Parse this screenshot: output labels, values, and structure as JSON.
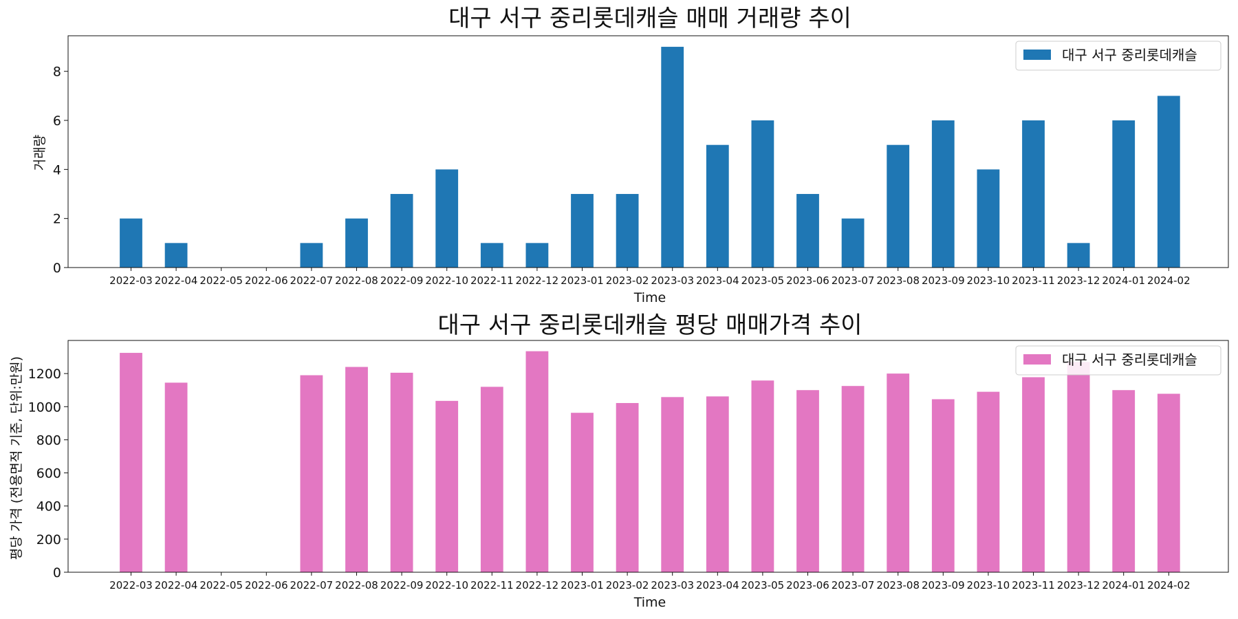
{
  "chart_data": [
    {
      "type": "bar",
      "title": "대구 서구 중리롯데캐슬 매매 거래량 추이",
      "xlabel": "Time",
      "ylabel": "거래량",
      "ylim": [
        0,
        9.45
      ],
      "yticks": [
        0,
        2,
        4,
        6,
        8
      ],
      "grid": false,
      "legend_position": "top-right",
      "color": "#1f77b4",
      "categories": [
        "2022-03",
        "2022-04",
        "2022-05",
        "2022-06",
        "2022-07",
        "2022-08",
        "2022-09",
        "2022-10",
        "2022-11",
        "2022-12",
        "2023-01",
        "2023-02",
        "2023-03",
        "2023-04",
        "2023-05",
        "2023-06",
        "2023-07",
        "2023-08",
        "2023-09",
        "2023-10",
        "2023-11",
        "2023-12",
        "2024-01",
        "2024-02"
      ],
      "series": [
        {
          "name": "대구 서구 중리롯데캐슬",
          "values": [
            2,
            1,
            0,
            0,
            1,
            2,
            3,
            4,
            1,
            1,
            3,
            3,
            9,
            5,
            6,
            3,
            2,
            5,
            6,
            4,
            6,
            1,
            6,
            7
          ]
        }
      ]
    },
    {
      "type": "bar",
      "title": "대구 서구 중리롯데캐슬 평당 매매가격 추이",
      "xlabel": "Time",
      "ylabel": "평당 가격 (전용면적 기준, 단위:만원)",
      "ylim": [
        0,
        1400
      ],
      "yticks": [
        0,
        200,
        400,
        600,
        800,
        1000,
        1200
      ],
      "grid": false,
      "legend_position": "top-right",
      "color": "#e377c2",
      "categories": [
        "2022-03",
        "2022-04",
        "2022-05",
        "2022-06",
        "2022-07",
        "2022-08",
        "2022-09",
        "2022-10",
        "2022-11",
        "2022-12",
        "2023-01",
        "2023-02",
        "2023-03",
        "2023-04",
        "2023-05",
        "2023-06",
        "2023-07",
        "2023-08",
        "2023-09",
        "2023-10",
        "2023-11",
        "2023-12",
        "2024-01",
        "2024-02"
      ],
      "series": [
        {
          "name": "대구 서구 중리롯데캐슬",
          "values": [
            1325,
            1145,
            0,
            0,
            1190,
            1240,
            1205,
            1035,
            1120,
            1335,
            963,
            1022,
            1058,
            1062,
            1158,
            1100,
            1125,
            1200,
            1045,
            1090,
            1178,
            1270,
            1100,
            1078
          ]
        }
      ]
    }
  ]
}
